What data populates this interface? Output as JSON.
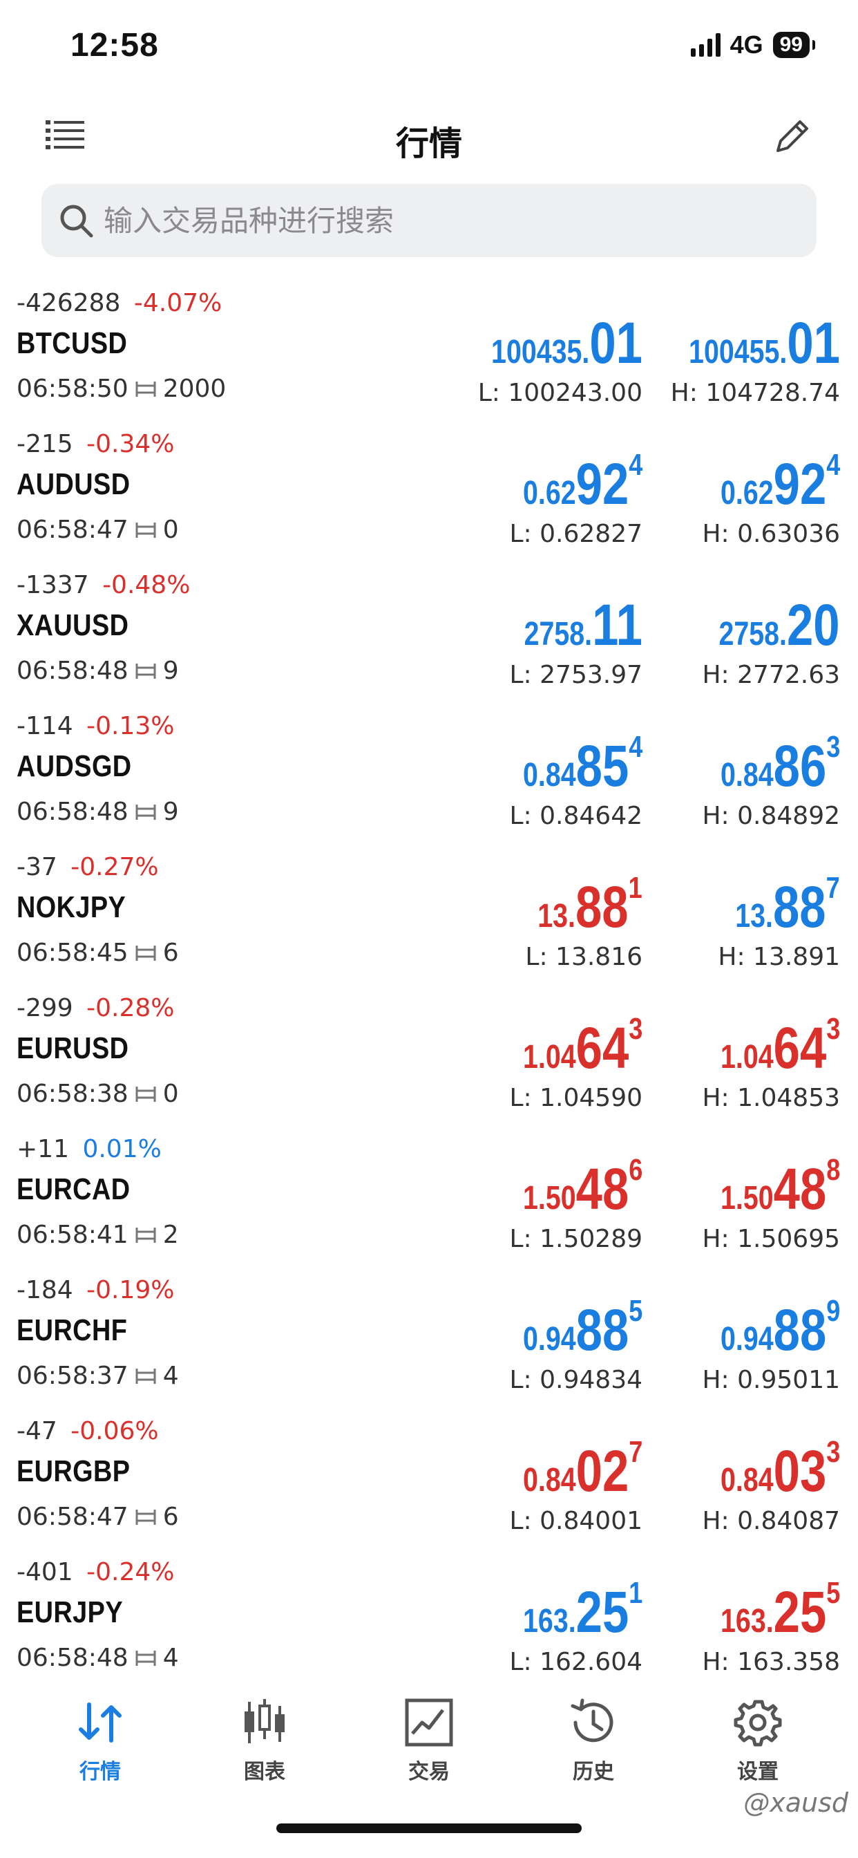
{
  "status_bar": {
    "time": "12:58",
    "network": "4G",
    "battery": "99"
  },
  "header": {
    "title": "行情"
  },
  "search": {
    "placeholder": "输入交易品种进行搜索"
  },
  "colors": {
    "accent_blue": "#1a7de0",
    "down_red": "#d9302c"
  },
  "quotes": [
    {
      "change_abs": "-426288",
      "change_pct": "-4.07%",
      "change_color": "red",
      "symbol": "BTCUSD",
      "time": "06:58:50",
      "spread": "2000",
      "bid": {
        "small": "100435.",
        "big": "01",
        "sup": "",
        "color": "blue"
      },
      "ask": {
        "small": "100455.",
        "big": "01",
        "sup": "",
        "color": "blue"
      },
      "low": "L: 100243.00",
      "high": "H: 104728.74"
    },
    {
      "change_abs": "-215",
      "change_pct": "-0.34%",
      "change_color": "red",
      "symbol": "AUDUSD",
      "time": "06:58:47",
      "spread": "0",
      "bid": {
        "small": "0.62",
        "big": "92",
        "sup": "4",
        "color": "blue"
      },
      "ask": {
        "small": "0.62",
        "big": "92",
        "sup": "4",
        "color": "blue"
      },
      "low": "L: 0.62827",
      "high": "H: 0.63036"
    },
    {
      "change_abs": "-1337",
      "change_pct": "-0.48%",
      "change_color": "red",
      "symbol": "XAUUSD",
      "time": "06:58:48",
      "spread": "9",
      "bid": {
        "small": "2758.",
        "big": "11",
        "sup": "",
        "color": "blue"
      },
      "ask": {
        "small": "2758.",
        "big": "20",
        "sup": "",
        "color": "blue"
      },
      "low": "L: 2753.97",
      "high": "H: 2772.63"
    },
    {
      "change_abs": "-114",
      "change_pct": "-0.13%",
      "change_color": "red",
      "symbol": "AUDSGD",
      "time": "06:58:48",
      "spread": "9",
      "bid": {
        "small": "0.84",
        "big": "85",
        "sup": "4",
        "color": "blue"
      },
      "ask": {
        "small": "0.84",
        "big": "86",
        "sup": "3",
        "color": "blue"
      },
      "low": "L: 0.84642",
      "high": "H: 0.84892"
    },
    {
      "change_abs": "-37",
      "change_pct": "-0.27%",
      "change_color": "red",
      "symbol": "NOKJPY",
      "time": "06:58:45",
      "spread": "6",
      "bid": {
        "small": "13.",
        "big": "88",
        "sup": "1",
        "color": "red"
      },
      "ask": {
        "small": "13.",
        "big": "88",
        "sup": "7",
        "color": "blue"
      },
      "low": "L: 13.816",
      "high": "H: 13.891"
    },
    {
      "change_abs": "-299",
      "change_pct": "-0.28%",
      "change_color": "red",
      "symbol": "EURUSD",
      "time": "06:58:38",
      "spread": "0",
      "bid": {
        "small": "1.04",
        "big": "64",
        "sup": "3",
        "color": "red"
      },
      "ask": {
        "small": "1.04",
        "big": "64",
        "sup": "3",
        "color": "red"
      },
      "low": "L: 1.04590",
      "high": "H: 1.04853"
    },
    {
      "change_abs": "+11",
      "change_pct": "0.01%",
      "change_color": "blue",
      "symbol": "EURCAD",
      "time": "06:58:41",
      "spread": "2",
      "bid": {
        "small": "1.50",
        "big": "48",
        "sup": "6",
        "color": "red"
      },
      "ask": {
        "small": "1.50",
        "big": "48",
        "sup": "8",
        "color": "red"
      },
      "low": "L: 1.50289",
      "high": "H: 1.50695"
    },
    {
      "change_abs": "-184",
      "change_pct": "-0.19%",
      "change_color": "red",
      "symbol": "EURCHF",
      "time": "06:58:37",
      "spread": "4",
      "bid": {
        "small": "0.94",
        "big": "88",
        "sup": "5",
        "color": "blue"
      },
      "ask": {
        "small": "0.94",
        "big": "88",
        "sup": "9",
        "color": "blue"
      },
      "low": "L: 0.94834",
      "high": "H: 0.95011"
    },
    {
      "change_abs": "-47",
      "change_pct": "-0.06%",
      "change_color": "red",
      "symbol": "EURGBP",
      "time": "06:58:47",
      "spread": "6",
      "bid": {
        "small": "0.84",
        "big": "02",
        "sup": "7",
        "color": "red"
      },
      "ask": {
        "small": "0.84",
        "big": "03",
        "sup": "3",
        "color": "red"
      },
      "low": "L: 0.84001",
      "high": "H: 0.84087"
    },
    {
      "change_abs": "-401",
      "change_pct": "-0.24%",
      "change_color": "red",
      "symbol": "EURJPY",
      "time": "06:58:48",
      "spread": "4",
      "bid": {
        "small": "163.",
        "big": "25",
        "sup": "1",
        "color": "blue"
      },
      "ask": {
        "small": "163.",
        "big": "25",
        "sup": "5",
        "color": "red"
      },
      "low": "L: 162.604",
      "high": "H: 163.358"
    }
  ],
  "tabs": [
    {
      "label": "行情",
      "icon": "quotes-arrows-icon",
      "active": true
    },
    {
      "label": "图表",
      "icon": "candlestick-chart-icon",
      "active": false
    },
    {
      "label": "交易",
      "icon": "trade-chart-icon",
      "active": false
    },
    {
      "label": "历史",
      "icon": "history-clock-icon",
      "active": false
    },
    {
      "label": "设置",
      "icon": "settings-gear-icon",
      "active": false
    }
  ],
  "watermark": "@xausd"
}
